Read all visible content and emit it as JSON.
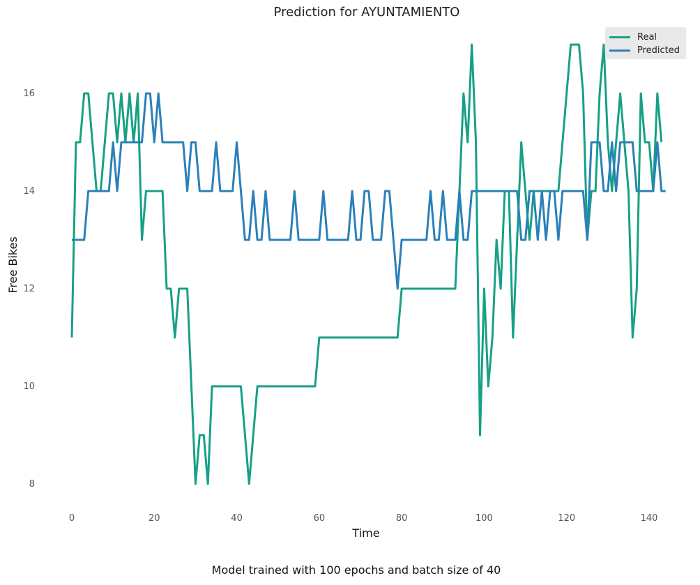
{
  "chart_data": {
    "type": "line",
    "title": "Prediction for AYUNTAMIENTO",
    "xlabel": "Time",
    "ylabel": "Free Bikes",
    "caption": "Model trained with 100 epochs and batch size of 40",
    "xlim": [
      -3,
      146
    ],
    "ylim": [
      7.5,
      17.4
    ],
    "xticks": [
      0,
      20,
      40,
      60,
      80,
      100,
      120,
      140
    ],
    "yticks": [
      8,
      10,
      12,
      14,
      16
    ],
    "grid": false,
    "legend_position": "top-right",
    "series": [
      {
        "name": "Real",
        "color": "#17a085",
        "values": [
          11,
          15,
          15,
          16,
          16,
          15,
          14,
          14,
          15,
          16,
          16,
          15,
          16,
          15,
          16,
          15,
          16,
          13,
          14,
          14,
          14,
          14,
          14,
          12,
          12,
          11,
          12,
          12,
          12,
          10,
          8,
          9,
          9,
          8,
          10,
          10,
          10,
          10,
          10,
          10,
          10,
          10,
          9,
          8,
          9,
          10,
          10,
          10,
          10,
          10,
          10,
          10,
          10,
          10,
          10,
          10,
          10,
          10,
          10,
          10,
          11,
          11,
          11,
          11,
          11,
          11,
          11,
          11,
          11,
          11,
          11,
          11,
          11,
          11,
          11,
          11,
          11,
          11,
          11,
          11,
          12,
          12,
          12,
          12,
          12,
          12,
          12,
          12,
          12,
          12,
          12,
          12,
          12,
          12,
          14,
          16,
          15,
          17,
          15,
          9,
          12,
          10,
          11,
          13,
          12,
          14,
          14,
          11,
          13,
          15,
          14,
          13,
          14,
          14,
          14,
          14,
          14,
          14,
          14,
          15,
          16,
          17,
          17,
          17,
          16,
          13,
          14,
          14,
          16,
          17,
          15,
          14,
          15,
          16,
          15,
          14,
          11,
          12,
          16,
          15,
          15,
          14,
          16,
          15
        ]
      },
      {
        "name": "Predicted",
        "color": "#2a80b9",
        "values": [
          13,
          13,
          13,
          13,
          14,
          14,
          14,
          14,
          14,
          14,
          15,
          14,
          15,
          15,
          15,
          15,
          15,
          15,
          16,
          16,
          15,
          16,
          15,
          15,
          15,
          15,
          15,
          15,
          14,
          15,
          15,
          14,
          14,
          14,
          14,
          15,
          14,
          14,
          14,
          14,
          15,
          14,
          13,
          13,
          14,
          13,
          13,
          14,
          13,
          13,
          13,
          13,
          13,
          13,
          14,
          13,
          13,
          13,
          13,
          13,
          13,
          14,
          13,
          13,
          13,
          13,
          13,
          13,
          14,
          13,
          13,
          14,
          14,
          13,
          13,
          13,
          14,
          14,
          13,
          12,
          13,
          13,
          13,
          13,
          13,
          13,
          13,
          14,
          13,
          13,
          14,
          13,
          13,
          13,
          14,
          13,
          13,
          14,
          14,
          14,
          14,
          14,
          14,
          14,
          14,
          14,
          14,
          14,
          14,
          13,
          13,
          14,
          14,
          13,
          14,
          13,
          14,
          14,
          13,
          14,
          14,
          14,
          14,
          14,
          14,
          13,
          15,
          15,
          15,
          14,
          14,
          15,
          14,
          15,
          15,
          15,
          15,
          14,
          14,
          14,
          14,
          14,
          15,
          14,
          14
        ]
      }
    ]
  }
}
